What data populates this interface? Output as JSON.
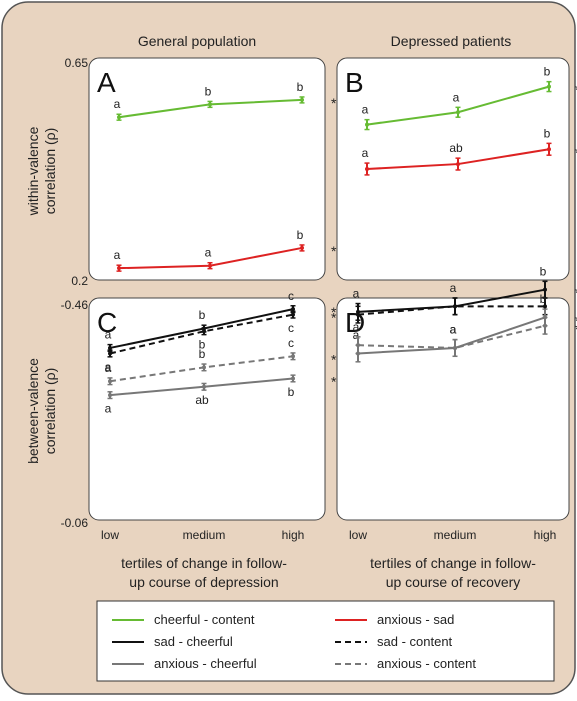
{
  "colors": {
    "frame_bg": "#e8d4c0",
    "frame_border": "#555555",
    "panel_bg": "#ffffff",
    "green": "#66bb33",
    "red": "#dd2222",
    "black": "#111111",
    "gray": "#777777"
  },
  "columns": [
    "General population",
    "Depressed patients"
  ],
  "y_axis_top": {
    "label_line1": "within-valence",
    "label_line2": "correlation (ρ)",
    "min_label": "0.2",
    "max_label": "0.65",
    "ylim": [
      0.2,
      0.65
    ]
  },
  "y_axis_bottom": {
    "label_line1": "between-valence",
    "label_line2": "correlation (ρ)",
    "min_label": "-0.06",
    "max_label": "-0.46",
    "ylim": [
      -0.06,
      -0.46
    ]
  },
  "x_ticks": [
    "low",
    "medium",
    "high"
  ],
  "x_labels": [
    {
      "line1": "tertiles of change in follow-",
      "line2": "up course of depression"
    },
    {
      "line1": "tertiles of change in follow-",
      "line2": "up course of recovery"
    }
  ],
  "legend": [
    {
      "label": "cheerful - content",
      "color": "#66bb33",
      "dash": false
    },
    {
      "label": "anxious - sad",
      "color": "#dd2222",
      "dash": false
    },
    {
      "label": "sad - cheerful",
      "color": "#111111",
      "dash": false
    },
    {
      "label": "sad - content",
      "color": "#111111",
      "dash": true
    },
    {
      "label": "anxious - cheerful",
      "color": "#777777",
      "dash": false
    },
    {
      "label": "anxious - content",
      "color": "#777777",
      "dash": true
    }
  ],
  "chart_data": [
    {
      "type": "line",
      "panel": "A",
      "ylim": [
        0.2,
        0.65
      ],
      "series": [
        {
          "name": "cheerful - content",
          "color": "#66bb33",
          "dash": false,
          "values": [
            0.53,
            0.556,
            0.565
          ],
          "err": [
            0.006,
            0.006,
            0.006
          ],
          "labels": [
            "a",
            "b",
            "b"
          ],
          "label_pos": [
            "above",
            "above",
            "above"
          ],
          "star": "*"
        },
        {
          "name": "anxious - sad",
          "color": "#dd2222",
          "dash": false,
          "values": [
            0.224,
            0.229,
            0.265
          ],
          "err": [
            0.006,
            0.006,
            0.006
          ],
          "labels": [
            "a",
            "a",
            "b"
          ],
          "label_pos": [
            "above",
            "above",
            "above"
          ],
          "star": "*"
        }
      ]
    },
    {
      "type": "line",
      "panel": "B",
      "ylim": [
        0.2,
        0.65
      ],
      "series": [
        {
          "name": "cheerful - content",
          "color": "#66bb33",
          "dash": false,
          "values": [
            0.515,
            0.54,
            0.592
          ],
          "err": [
            0.01,
            0.01,
            0.01
          ],
          "labels": [
            "a",
            "a",
            "b"
          ],
          "label_pos": [
            "above",
            "above",
            "above"
          ],
          "star": "*"
        },
        {
          "name": "anxious - sad",
          "color": "#dd2222",
          "dash": false,
          "values": [
            0.425,
            0.435,
            0.465
          ],
          "err": [
            0.012,
            0.012,
            0.012
          ],
          "labels": [
            "a",
            "ab",
            "b"
          ],
          "label_pos": [
            "above",
            "above",
            "above"
          ],
          "star": "*"
        }
      ]
    },
    {
      "type": "line",
      "panel": "C",
      "ylim": [
        -0.06,
        -0.46
      ],
      "series": [
        {
          "name": "sad - cheerful",
          "color": "#111111",
          "dash": false,
          "values": [
            -0.37,
            -0.405,
            -0.44
          ],
          "err": [
            0.006,
            0.006,
            0.006
          ],
          "labels": [
            "a",
            "b",
            "c"
          ],
          "label_pos": [
            "above",
            "above",
            "above"
          ],
          "star": "*"
        },
        {
          "name": "sad - content",
          "color": "#111111",
          "dash": true,
          "values": [
            -0.36,
            -0.4,
            -0.43
          ],
          "err": [
            0.006,
            0.006,
            0.006
          ],
          "labels": [
            "a",
            "b",
            "c"
          ],
          "label_pos": [
            "below",
            "below",
            "below"
          ],
          "star": "*"
        },
        {
          "name": "anxious - content",
          "color": "#777777",
          "dash": true,
          "values": [
            -0.31,
            -0.335,
            -0.355
          ],
          "err": [
            0.006,
            0.006,
            0.006
          ],
          "labels": [
            "a",
            "b",
            "c"
          ],
          "label_pos": [
            "above",
            "above",
            "above"
          ],
          "star": "*"
        },
        {
          "name": "anxious - cheerful",
          "color": "#777777",
          "dash": false,
          "values": [
            -0.285,
            -0.3,
            -0.315
          ],
          "err": [
            0.006,
            0.006,
            0.006
          ],
          "labels": [
            "a",
            "ab",
            "b"
          ],
          "label_pos": [
            "below",
            "below",
            "below"
          ],
          "star": "*"
        }
      ]
    },
    {
      "type": "line",
      "panel": "D",
      "ylim": [
        -0.06,
        -0.46
      ],
      "series": [
        {
          "name": "sad - cheerful",
          "color": "#111111",
          "dash": false,
          "values": [
            -0.435,
            -0.445,
            -0.475
          ],
          "err": [
            0.015,
            0.015,
            0.015
          ],
          "labels": [
            "a",
            "a",
            "b"
          ],
          "label_pos": [
            "above",
            "above",
            "above"
          ],
          "star": "*"
        },
        {
          "name": "sad - content",
          "color": "#111111",
          "dash": true,
          "values": [
            -0.43,
            -0.445,
            -0.445
          ],
          "err": [
            0.015,
            0.015,
            0.015
          ],
          "labels": [
            "",
            "",
            ""
          ],
          "label_pos": [
            "above",
            "above",
            "above"
          ],
          "star": ""
        },
        {
          "name": "anxious - cheerful",
          "color": "#777777",
          "dash": false,
          "values": [
            -0.36,
            -0.37,
            -0.425
          ],
          "err": [
            0.015,
            0.015,
            0.015
          ],
          "labels": [
            "a",
            "a",
            "b"
          ],
          "label_pos": [
            "above",
            "above",
            "above"
          ],
          "star": "*"
        },
        {
          "name": "anxious - content",
          "color": "#777777",
          "dash": true,
          "values": [
            -0.375,
            -0.37,
            -0.41
          ],
          "err": [
            0.015,
            0.015,
            0.015
          ],
          "labels": [
            "a",
            "a",
            ""
          ],
          "label_pos": [
            "above",
            "above",
            "above"
          ],
          "star": "*"
        }
      ]
    }
  ]
}
